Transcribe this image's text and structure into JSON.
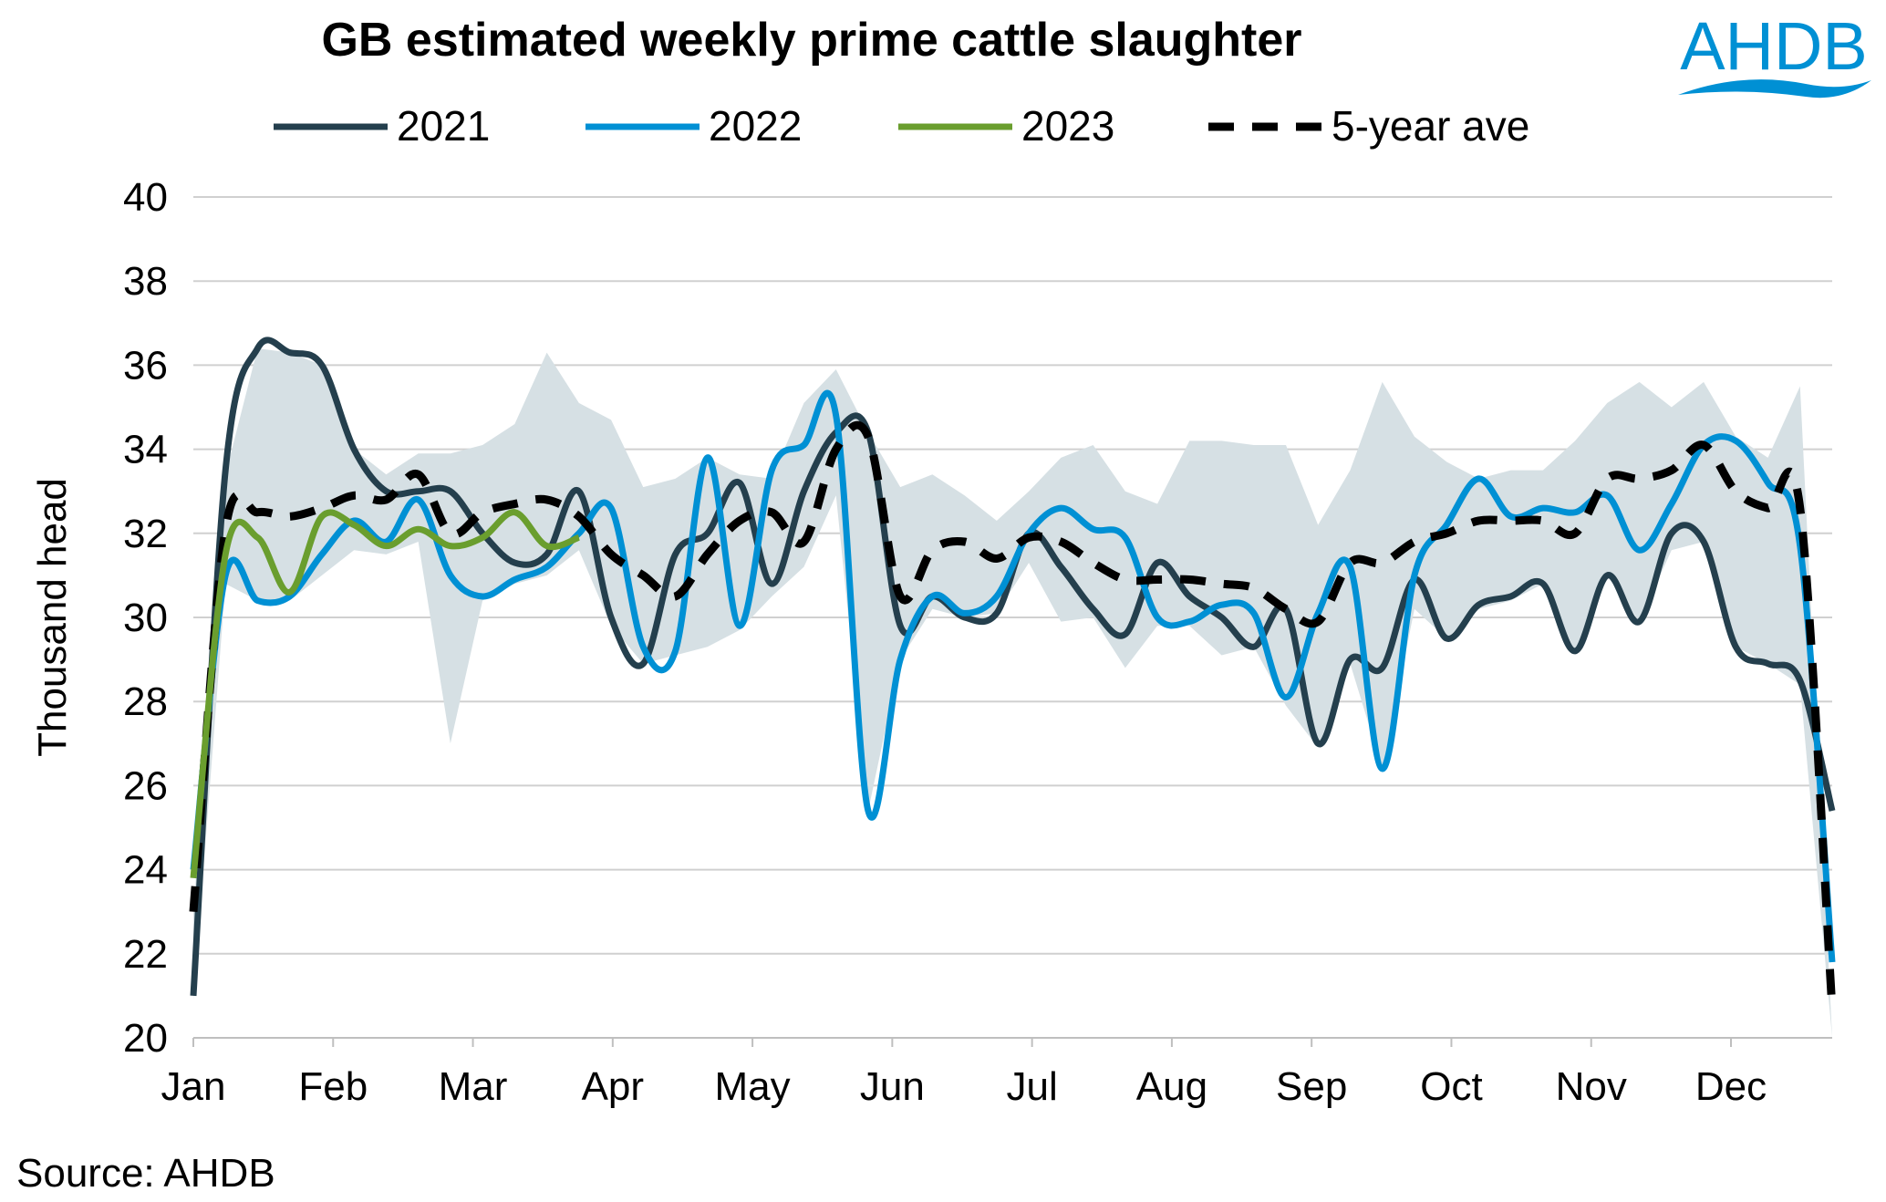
{
  "logo_text": "AHDB",
  "chart_data": {
    "type": "line",
    "title": "GB estimated weekly prime cattle slaughter",
    "ylabel": "Thousand head",
    "xlabel": "",
    "ylim": [
      20,
      40
    ],
    "yticks": [
      20,
      22,
      24,
      26,
      28,
      30,
      32,
      34,
      36,
      38,
      40
    ],
    "x_tick_labels": [
      "Jan",
      "Feb",
      "Mar",
      "Apr",
      "May",
      "Jun",
      "Jul",
      "Aug",
      "Sep",
      "Oct",
      "Nov",
      "Dec"
    ],
    "x_unit": "week of year",
    "x_weeks": 52,
    "grid": "horizontal",
    "legend_position": "top",
    "source": "Source: AHDB",
    "range_band": {
      "color": "#d6e0e4",
      "upper": [
        23,
        33.4,
        36.4,
        36.3,
        36,
        34,
        33.4,
        33.9,
        33.9,
        34.1,
        34.6,
        36.3,
        35.1,
        34.7,
        33.1,
        33.3,
        33.8,
        33.4,
        33.3,
        35.1,
        35.9,
        34.4,
        33.1,
        33.4,
        32.9,
        32.3,
        33,
        33.8,
        34.1,
        33,
        32.7,
        34.2,
        34.2,
        34.1,
        34.1,
        32.2,
        33.5,
        35.6,
        34.3,
        33.7,
        33.3,
        33.5,
        33.5,
        34.2,
        35.1,
        35.6,
        35,
        35.6,
        34.3,
        33.8,
        35.5,
        20
      ],
      "lower": [
        20.9,
        30.8,
        30.4,
        30.4,
        31,
        31.6,
        31.5,
        31.8,
        27,
        30.4,
        30.8,
        31,
        31.6,
        29.8,
        28.9,
        29.1,
        29.3,
        29.7,
        30.5,
        31.2,
        32.9,
        25.4,
        29,
        30.2,
        30,
        30.1,
        31.3,
        29.9,
        30,
        28.8,
        29.8,
        29.8,
        29.1,
        29.3,
        27.9,
        26.9,
        28.9,
        26.4,
        30.2,
        29.5,
        30.2,
        30.4,
        30.8,
        29.2,
        31,
        29.9,
        31.6,
        31.8,
        29.3,
        28.9,
        28.4,
        20
      ]
    },
    "series": [
      {
        "name": "2021",
        "color": "#243f4d",
        "dash": false,
        "values": [
          21,
          33.5,
          36.4,
          36.3,
          36,
          34,
          33,
          33,
          33,
          32,
          31.3,
          31.5,
          33,
          30,
          28.9,
          31.5,
          32,
          33.2,
          30.8,
          33,
          34.4,
          34.4,
          29.8,
          30.5,
          30,
          30.1,
          32,
          31.2,
          30.2,
          29.6,
          31.3,
          30.5,
          30,
          29.3,
          30.2,
          27,
          29,
          28.8,
          30.9,
          29.5,
          30.3,
          30.5,
          30.8,
          29.2,
          31,
          29.9,
          32,
          31.8,
          29.3,
          28.9,
          28.5,
          25.4
        ]
      },
      {
        "name": "2022",
        "color": "#0090d4",
        "dash": false,
        "values": [
          24,
          31,
          30.4,
          30.5,
          31.5,
          32.3,
          31.8,
          32.8,
          31,
          30.5,
          30.9,
          31.2,
          32,
          32.6,
          29.3,
          29.2,
          33.8,
          29.8,
          33.5,
          34.1,
          34.8,
          25.4,
          29,
          30.5,
          30.1,
          30.5,
          32,
          32.6,
          32.1,
          31.9,
          30,
          29.9,
          30.3,
          30.1,
          28.1,
          30.1,
          31.2,
          26.4,
          31,
          32.2,
          33.3,
          32.4,
          32.6,
          32.5,
          32.9,
          31.6,
          32.7,
          34.1,
          34.2,
          33.2,
          31.7,
          21.8
        ]
      },
      {
        "name": "2023",
        "color": "#6a9e2e",
        "dash": false,
        "values": [
          23.8,
          31.5,
          31.9,
          30.6,
          32.4,
          32.2,
          31.7,
          32.1,
          31.7,
          31.9,
          32.5,
          31.7,
          31.9
        ]
      },
      {
        "name": "5-year ave",
        "color": "#000000",
        "dash": true,
        "values": [
          23,
          32.1,
          32.5,
          32.4,
          32.6,
          32.9,
          32.8,
          33.4,
          32,
          32.5,
          32.7,
          32.8,
          32.4,
          31.5,
          31,
          30.5,
          31.5,
          32.3,
          32.5,
          31.8,
          34,
          34.3,
          30.5,
          31.6,
          31.8,
          31.4,
          31.9,
          31.8,
          31.3,
          30.9,
          30.9,
          30.9,
          30.8,
          30.7,
          30.2,
          29.9,
          31.3,
          31.3,
          31.8,
          32,
          32.3,
          32.3,
          32.3,
          32,
          33.3,
          33.3,
          33.5,
          34.1,
          33,
          32.6,
          32.6,
          20.7
        ]
      }
    ]
  }
}
